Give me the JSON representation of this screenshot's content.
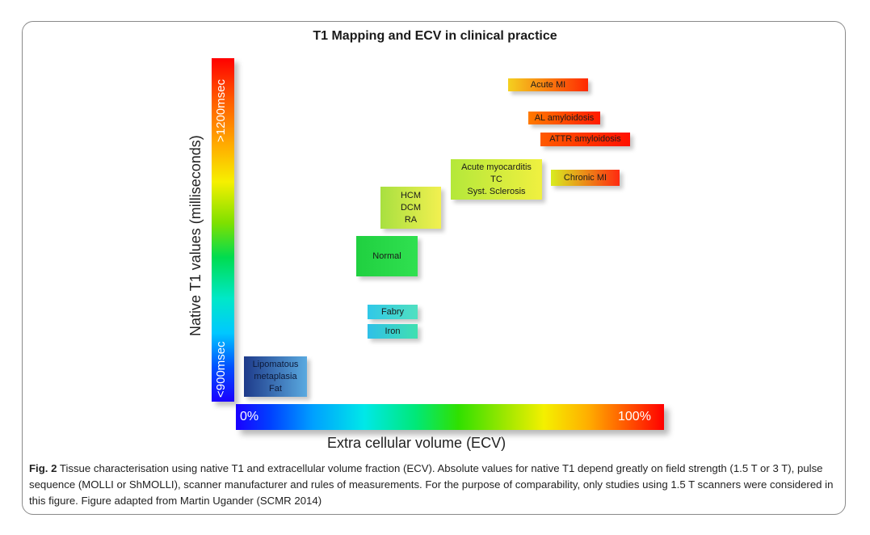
{
  "figure": {
    "title": "T1 Mapping and ECV in clinical practice",
    "y_axis": {
      "label": "Native T1 values (milliseconds)",
      "top_tick": ">1200msec",
      "bottom_tick": "<900msec"
    },
    "x_axis": {
      "label": "Extra cellular volume (ECV)",
      "left_tick": "0%",
      "right_tick": "100%"
    },
    "conditions": [
      {
        "id": "acute-mi",
        "lines": [
          "Acute MI"
        ],
        "colors": [
          "#f4d020",
          "#ff2800"
        ]
      },
      {
        "id": "al-amyloidosis",
        "lines": [
          "AL amyloidosis"
        ],
        "colors": [
          "#ff7a00",
          "#ff1a00"
        ]
      },
      {
        "id": "attr-amyloidosis",
        "lines": [
          "ATTR amyloidosis"
        ],
        "colors": [
          "#ff5a00",
          "#ff1000"
        ]
      },
      {
        "id": "chronic-mi",
        "lines": [
          "Chronic MI"
        ],
        "colors": [
          "#d8ec20",
          "#ff2a10"
        ]
      },
      {
        "id": "acute-myocarditis",
        "lines": [
          "Acute myocarditis",
          "TC",
          "Syst. Sclerosis"
        ],
        "colors": [
          "#b4e83a",
          "#f0f040"
        ]
      },
      {
        "id": "hcm-dcm-ra",
        "lines": [
          "HCM",
          "DCM",
          "RA"
        ],
        "colors": [
          "#a8e040",
          "#f2f050"
        ]
      },
      {
        "id": "normal",
        "lines": [
          "Normal"
        ],
        "colors": [
          "#20d040",
          "#30e050"
        ]
      },
      {
        "id": "fabry",
        "lines": [
          "Fabry"
        ],
        "colors": [
          "#30c8e8",
          "#50e0c0"
        ]
      },
      {
        "id": "iron",
        "lines": [
          "Iron"
        ],
        "colors": [
          "#30c0e8",
          "#40e0b0"
        ]
      },
      {
        "id": "lipomatous-fat",
        "lines": [
          "Lipomatous",
          "metaplasia",
          "Fat"
        ],
        "colors": [
          "#1e3a8a",
          "#5aaae0"
        ]
      }
    ]
  },
  "caption": {
    "figure_number": "Fig. 2",
    "text": "Tissue characterisation using native T1 and extracellular volume fraction (ECV). Absolute values for native T1 depend greatly on field strength (1.5 T or 3 T), pulse sequence (MOLLI or ShMOLLI), scanner manufacturer and rules of measurements. For the purpose of comparability, only studies using 1.5 T scanners were considered in this figure. Figure adapted from Martin Ugander (SCMR 2014)"
  }
}
